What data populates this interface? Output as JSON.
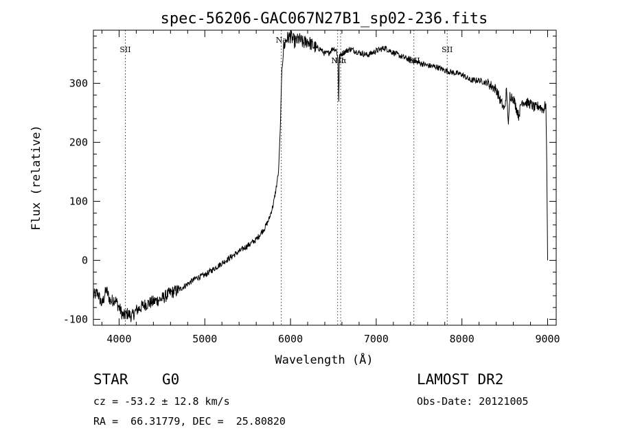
{
  "chart_data": {
    "type": "line",
    "title": "spec-56206-GAC067N27B1_sp02-236.fits",
    "xlabel": "Wavelength (Å)",
    "ylabel": "Flux (relative)",
    "xlim": [
      3700,
      9100
    ],
    "ylim": [
      -110,
      390
    ],
    "x_ticks": [
      4000,
      5000,
      6000,
      7000,
      8000,
      9000
    ],
    "y_ticks": [
      -100,
      0,
      100,
      200,
      300
    ],
    "grid": false,
    "series": [
      {
        "x": [
          3700,
          3750,
          3800,
          3850,
          3900,
          3950,
          4000,
          4050,
          4100,
          4150,
          4200,
          4300,
          4400,
          4500,
          4600,
          4700,
          4800,
          4900,
          5000,
          5100,
          5200,
          5300,
          5400,
          5500,
          5600,
          5700,
          5750,
          5800,
          5830,
          5860,
          5880,
          5900,
          5920,
          5950,
          6000,
          6050,
          6100,
          6150,
          6200,
          6250,
          6300,
          6350,
          6400,
          6450,
          6500,
          6540,
          6555,
          6563,
          6570,
          6600,
          6650,
          6700,
          6800,
          6900,
          7000,
          7100,
          7200,
          7300,
          7400,
          7500,
          7600,
          7700,
          7800,
          7900,
          8000,
          8100,
          8200,
          8300,
          8400,
          8450,
          8498,
          8520,
          8542,
          8560,
          8600,
          8662,
          8700,
          8800,
          8850,
          8900,
          8950,
          8980,
          8990,
          9000
        ],
        "y": [
          -60,
          -55,
          -75,
          -50,
          -70,
          -65,
          -80,
          -95,
          -90,
          -95,
          -85,
          -75,
          -70,
          -65,
          -55,
          -50,
          -40,
          -30,
          -25,
          -15,
          -5,
          5,
          15,
          25,
          35,
          55,
          70,
          95,
          120,
          150,
          220,
          330,
          360,
          375,
          380,
          370,
          375,
          368,
          372,
          365,
          360,
          358,
          350,
          352,
          360,
          355,
          335,
          270,
          345,
          350,
          355,
          358,
          352,
          348,
          355,
          360,
          352,
          345,
          340,
          335,
          330,
          328,
          322,
          318,
          315,
          305,
          305,
          300,
          290,
          270,
          255,
          290,
          230,
          280,
          275,
          245,
          270,
          265,
          258,
          262,
          255,
          265,
          160,
          0
        ]
      }
    ],
    "annotations": [
      {
        "label": "SII",
        "x": 4072
      },
      {
        "label": "Na",
        "x": 5893
      },
      {
        "label": "NII",
        "x": 6550
      },
      {
        "label": "Hα",
        "x": 6585
      },
      {
        "label": "OII",
        "x": 7440
      },
      {
        "label": "SII",
        "x": 7828
      }
    ]
  },
  "info": {
    "class": "STAR",
    "subclass": "G0",
    "survey": "LAMOST DR2",
    "cz": "cz = -53.2 ± 12.8 km/s",
    "obs_date": "Obs-Date: 20121005",
    "radec": "RA =  66.31779, DEC =  25.80820"
  }
}
